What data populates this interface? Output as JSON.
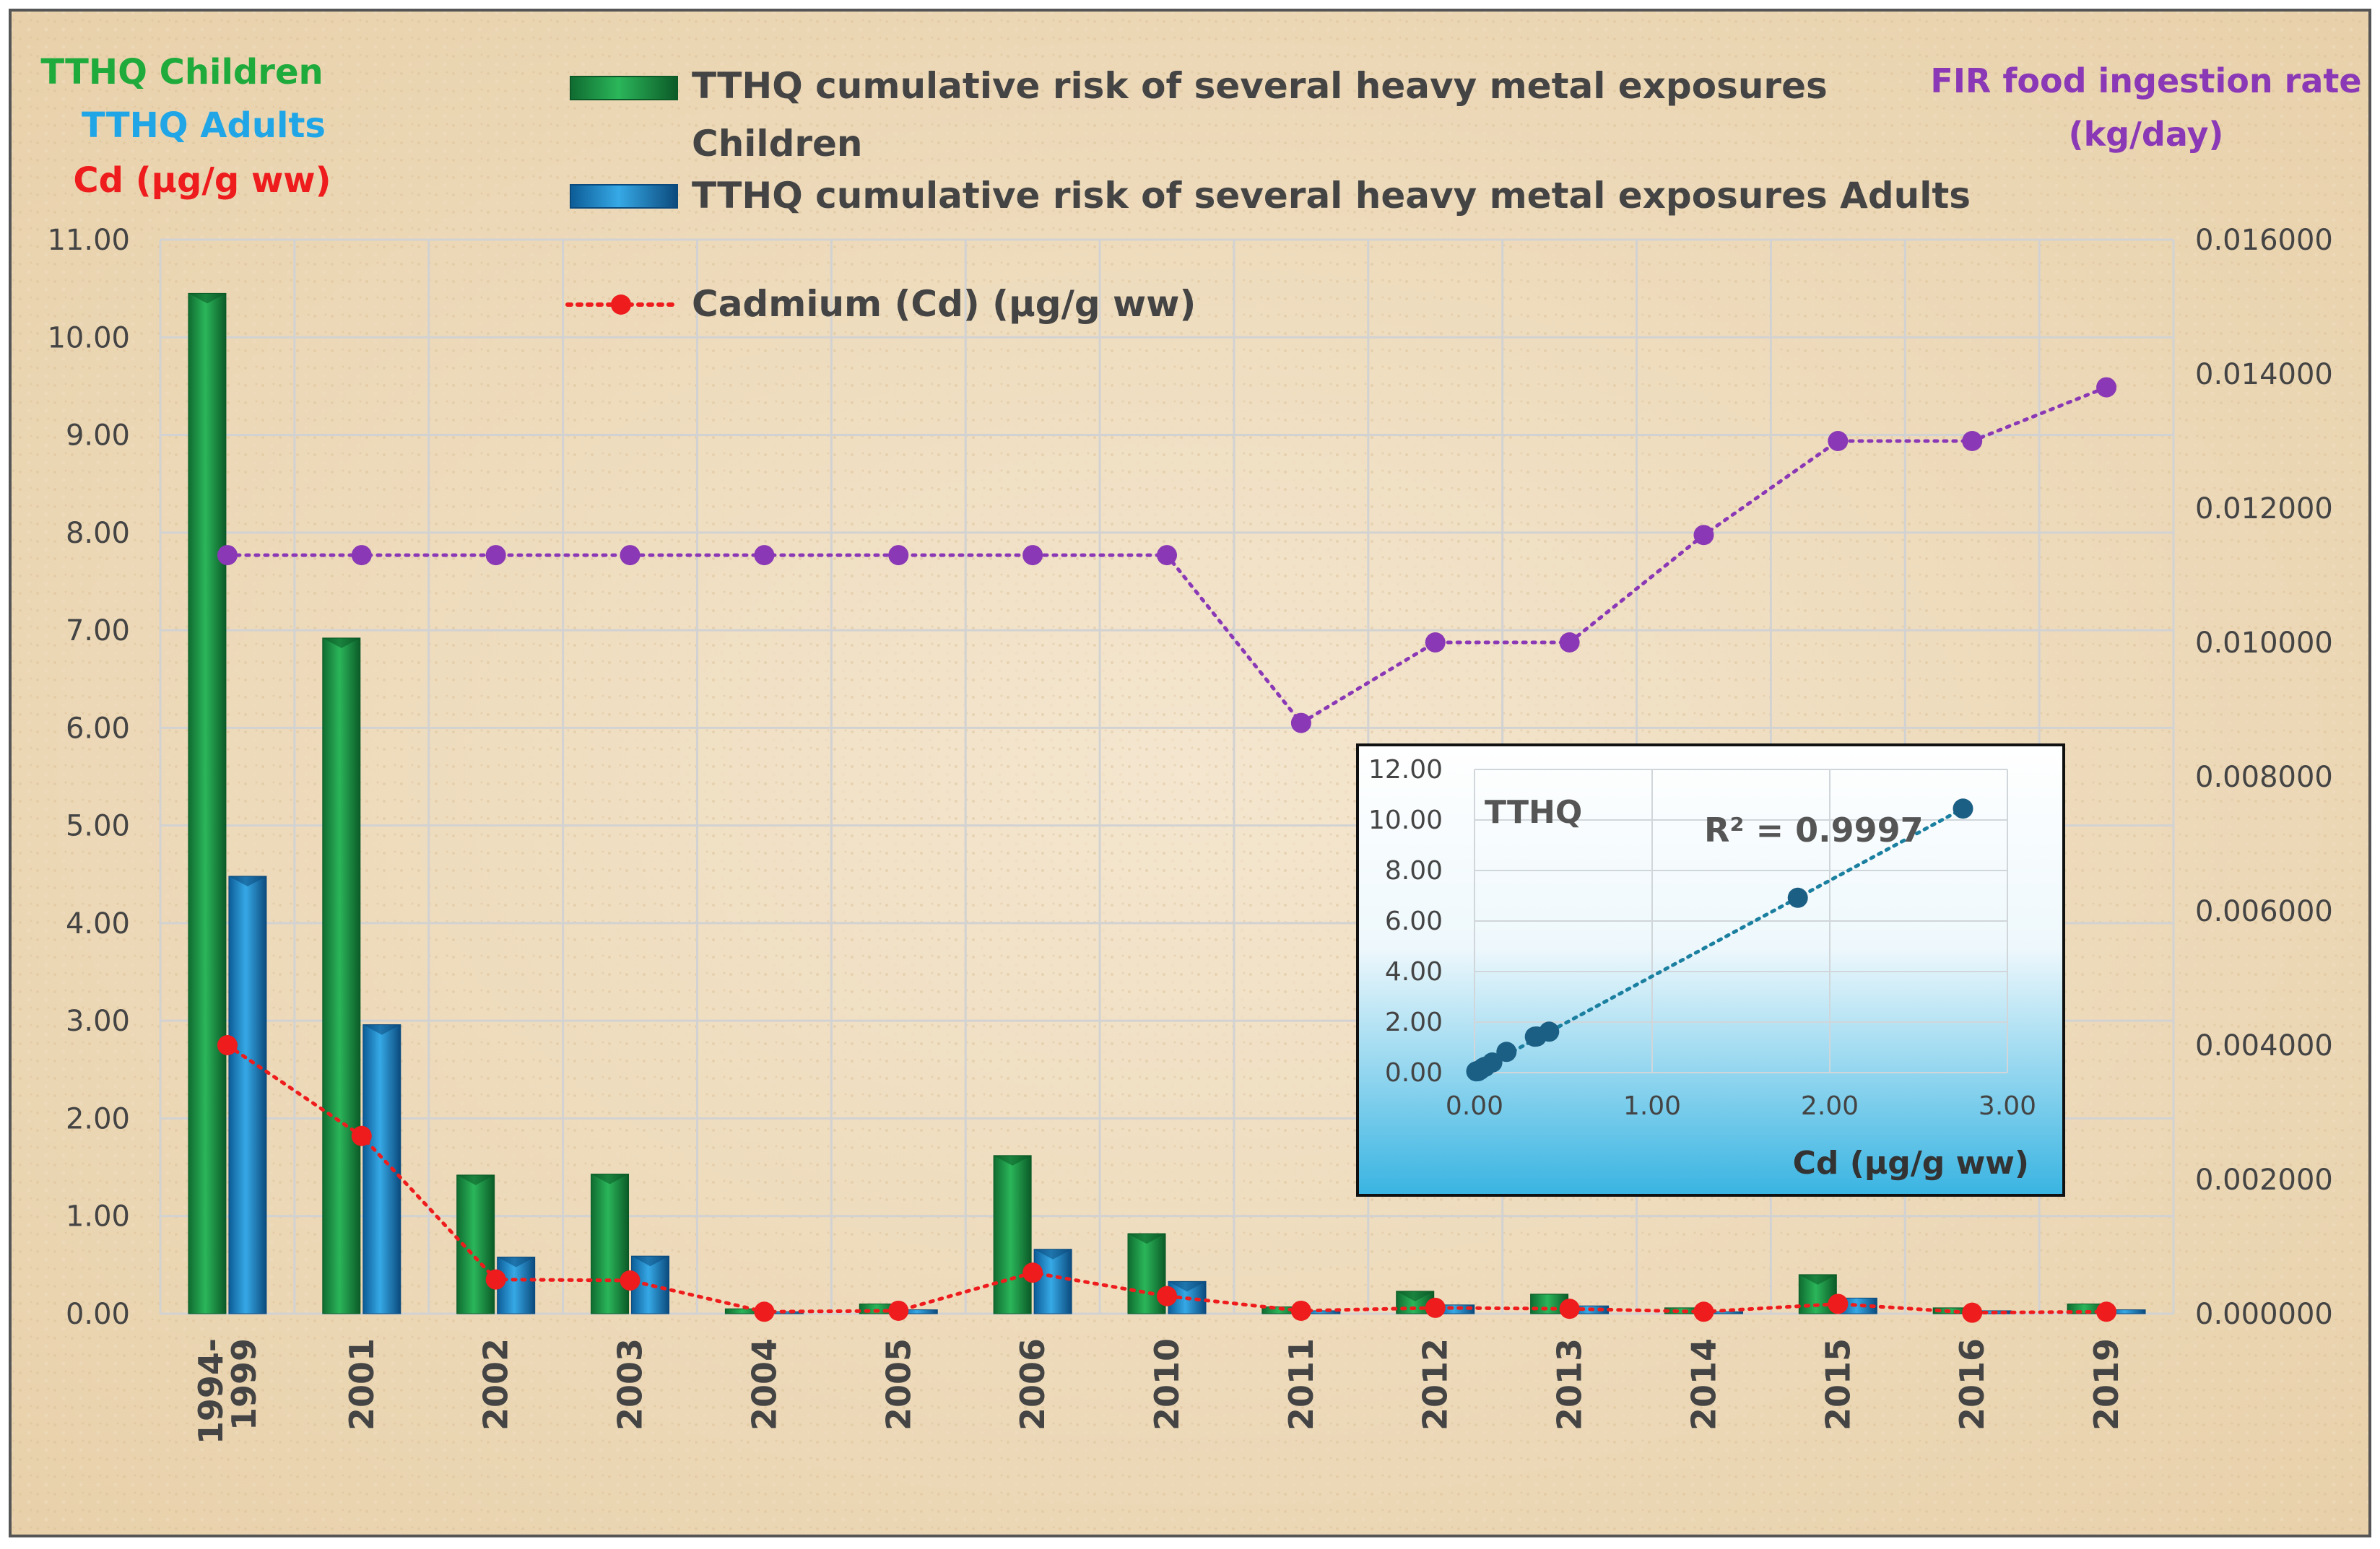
{
  "chart_data": [
    {
      "type": "bar+line",
      "title": "",
      "left_axis_titles": [
        "TTHQ  Children",
        "TTHQ Adults",
        "Cd (µg/g ww)"
      ],
      "right_axis_title": [
        "FIR  food ingestion rate",
        "(kg/day)"
      ],
      "categories": [
        "1994-1999",
        "2001",
        "2002",
        "2003",
        "2004",
        "2005",
        "2006",
        "2010",
        "2011",
        "2012",
        "2013",
        "2014",
        "2015",
        "2016",
        "2019"
      ],
      "category_lines": [
        [
          "1994-",
          "1999"
        ],
        [
          "2001"
        ],
        [
          "2002"
        ],
        [
          "2003"
        ],
        [
          "2004"
        ],
        [
          "2005"
        ],
        [
          "2006"
        ],
        [
          "2010"
        ],
        [
          "2011"
        ],
        [
          "2012"
        ],
        [
          "2013"
        ],
        [
          "2014"
        ],
        [
          "2015"
        ],
        [
          "2016"
        ],
        [
          "2019"
        ]
      ],
      "ylim_left": [
        0,
        11
      ],
      "yticks_left": [
        "0.00",
        "1.00",
        "2.00",
        "3.00",
        "4.00",
        "5.00",
        "6.00",
        "7.00",
        "8.00",
        "9.00",
        "10.00",
        "11.00"
      ],
      "ylim_right": [
        0,
        0.016
      ],
      "yticks_right": [
        "0.000000",
        "0.002000",
        "0.004000",
        "0.006000",
        "0.008000",
        "0.010000",
        "0.012000",
        "0.014000",
        "0.016000"
      ],
      "legend": {
        "children_line1": "TTHQ cumulative risk of several heavy metal exposures",
        "children_line2": "Children",
        "adults": "TTHQ cumulative risk of several heavy metal exposures  Adults",
        "cadmium": "Cadmium (Cd) (µg/g ww)"
      },
      "series": [
        {
          "name": "TTHQ cumulative risk of several heavy metal exposures Children",
          "axis": "left",
          "kind": "bar",
          "color": "#1e9a48",
          "values": [
            10.45,
            6.92,
            1.42,
            1.43,
            0.05,
            0.1,
            1.62,
            0.82,
            0.07,
            0.23,
            0.2,
            0.06,
            0.4,
            0.06,
            0.1
          ]
        },
        {
          "name": "TTHQ cumulative risk of several heavy metal exposures Adults",
          "axis": "left",
          "kind": "bar",
          "color": "#1f8fcf",
          "values": [
            4.48,
            2.96,
            0.58,
            0.59,
            0.02,
            0.04,
            0.66,
            0.33,
            0.03,
            0.09,
            0.08,
            0.02,
            0.16,
            0.03,
            0.04
          ]
        },
        {
          "name": "Cadmium (Cd) (µg/g ww)",
          "axis": "left",
          "kind": "line-dotted",
          "color": "#ee1c1c",
          "values": [
            2.75,
            1.82,
            0.35,
            0.34,
            0.02,
            0.03,
            0.42,
            0.18,
            0.03,
            0.06,
            0.05,
            0.02,
            0.1,
            0.01,
            0.02
          ]
        },
        {
          "name": "FIR food ingestion rate (kg/day)",
          "axis": "right",
          "kind": "line-dotted",
          "color": "#8a38b5",
          "values": [
            0.0113,
            0.0113,
            0.0113,
            0.0113,
            0.0113,
            0.0113,
            0.0113,
            0.0113,
            0.0088,
            0.01,
            0.01,
            0.0116,
            0.013,
            0.013,
            0.0138
          ]
        }
      ]
    },
    {
      "type": "scatter",
      "title": "TTHQ",
      "xlabel": "Cd (µg/g ww)",
      "annotation": "R² = 0.9997",
      "xlim": [
        0,
        3
      ],
      "xticks": [
        "0.00",
        "1.00",
        "2.00",
        "3.00"
      ],
      "ylim": [
        0,
        12
      ],
      "yticks": [
        "0.00",
        "2.00",
        "4.00",
        "6.00",
        "8.00",
        "10.00",
        "12.00"
      ],
      "x": [
        0.01,
        0.02,
        0.02,
        0.03,
        0.03,
        0.05,
        0.06,
        0.1,
        0.18,
        0.34,
        0.35,
        0.42,
        1.82,
        2.75
      ],
      "y": [
        0.05,
        0.06,
        0.06,
        0.1,
        0.1,
        0.2,
        0.23,
        0.4,
        0.82,
        1.42,
        1.43,
        1.62,
        6.92,
        10.45
      ],
      "trendline": {
        "x": [
          0,
          2.75
        ],
        "y": [
          0.02,
          10.45
        ]
      },
      "colors": {
        "points": "#1b5f85",
        "trend": "#1b7fa0"
      }
    }
  ]
}
